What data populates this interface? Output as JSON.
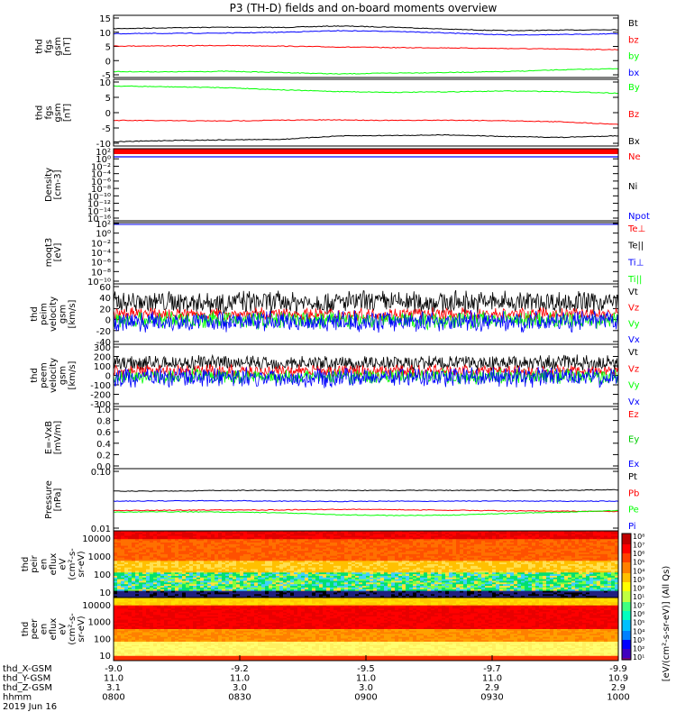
{
  "chart_data": {
    "title": "P3 (TH-D) fields and on-board moments overview",
    "panels": [
      {
        "id": "fgs_gsm_mag",
        "type": "line",
        "ylabel_lines": [
          "thd",
          "fgs",
          "gsm",
          "[nT]"
        ],
        "ylim": [
          -5,
          16
        ],
        "yticks": [
          "15",
          "10",
          "5",
          "0",
          "-5"
        ],
        "series": [
          {
            "name": "Bt",
            "color": "#000000",
            "values": [
              11.5,
              11.8,
              12.0,
              11.9,
              12.4,
              12.0,
              11.3,
              10.8,
              11.0,
              11.2
            ]
          },
          {
            "name": "bz",
            "color": "#ff0000",
            "values": [
              5.6,
              5.7,
              5.8,
              5.6,
              5.3,
              5.1,
              5.0,
              4.8,
              4.6,
              4.4
            ]
          },
          {
            "name": "by",
            "color": "#00ff00",
            "values": [
              -3.0,
              -3.1,
              -2.9,
              -3.3,
              -3.8,
              -3.5,
              -3.3,
              -3.0,
              -2.4,
              -2.0
            ]
          },
          {
            "name": "bx",
            "color": "#0000ff",
            "values": [
              9.8,
              9.9,
              10.0,
              10.3,
              10.8,
              10.6,
              10.0,
              9.4,
              9.5,
              9.8
            ]
          }
        ]
      },
      {
        "id": "fgs_gsm_comp",
        "type": "line",
        "ylabel_lines": [
          "thd",
          "fgs",
          "gsm",
          "[nT]"
        ],
        "ylim": [
          -12,
          12
        ],
        "yticks": [
          "10",
          "5",
          "0",
          "-5",
          "-10"
        ],
        "series": [
          {
            "name": "By",
            "color": "#00ff00",
            "values": [
              9.6,
              9.3,
              9.0,
              8.2,
              7.6,
              7.3,
              7.5,
              7.8,
              7.6,
              7.0
            ]
          },
          {
            "name": "Bz",
            "color": "#ff0000",
            "values": [
              -2.8,
              -2.9,
              -3.0,
              -2.7,
              -2.6,
              -2.8,
              -2.7,
              -2.9,
              -3.3,
              -4.2
            ]
          },
          {
            "name": "Bx",
            "color": "#000000",
            "values": [
              -10.5,
              -10.0,
              -9.8,
              -9.6,
              -8.4,
              -8.2,
              -8.0,
              -8.6,
              -8.9,
              -8.3
            ]
          }
        ]
      },
      {
        "id": "density",
        "type": "line",
        "ylabel_lines": [
          "Density",
          "[cm-3]"
        ],
        "yscale": "log",
        "yticks": [
          "10²",
          "10⁰",
          "10⁻²",
          "10⁻⁴",
          "10⁻⁶",
          "10⁻⁸",
          "10⁻¹⁰",
          "10⁻¹²",
          "10⁻¹⁴",
          "10⁻¹⁶"
        ],
        "series": [
          {
            "name": "Ne",
            "color": "#ff0000"
          },
          {
            "name": "Ni",
            "color": "#000000"
          },
          {
            "name": "Npot",
            "color": "#0000ff"
          }
        ]
      },
      {
        "id": "moqt3",
        "type": "line",
        "ylabel_lines": [
          "moqt3",
          "[eV]"
        ],
        "yscale": "log",
        "yticks": [
          "10²",
          "10⁰",
          "10⁻²",
          "10⁻⁴",
          "10⁻⁶",
          "10⁻⁸",
          "10⁻¹⁰"
        ],
        "series": [
          {
            "name": "Te⊥",
            "color": "#ff0000"
          },
          {
            "name": "Te||",
            "color": "#000000"
          },
          {
            "name": "Ti⊥",
            "color": "#0000ff"
          },
          {
            "name": "Ti||",
            "color": "#00ff00"
          }
        ]
      },
      {
        "id": "peim_velocity",
        "type": "line",
        "ylabel_lines": [
          "thd",
          "peim",
          "velocity",
          "gsm",
          "[km/s]"
        ],
        "ylim": [
          -40,
          60
        ],
        "yticks": [
          "60",
          "40",
          "20",
          "0",
          "-20",
          "-40"
        ],
        "series": [
          {
            "name": "Vt",
            "color": "#000000",
            "center": 30,
            "amp": 18
          },
          {
            "name": "Vz",
            "color": "#ff0000",
            "center": 10,
            "amp": 10
          },
          {
            "name": "Vy",
            "color": "#00ff00",
            "center": 0,
            "amp": 14
          },
          {
            "name": "Vx",
            "color": "#0000ff",
            "center": -2,
            "amp": 16
          }
        ]
      },
      {
        "id": "peem_velocity",
        "type": "line",
        "ylabel_lines": [
          "thd",
          "peem",
          "velocity",
          "gsm",
          "[km/s]"
        ],
        "ylim": [
          -300,
          300
        ],
        "yticks": [
          "300",
          "200",
          "100",
          "0",
          "-100",
          "-200",
          "-300"
        ],
        "series": [
          {
            "name": "Vt",
            "color": "#000000",
            "center": 120,
            "amp": 70
          },
          {
            "name": "Vz",
            "color": "#ff0000",
            "center": 40,
            "amp": 60
          },
          {
            "name": "Vy",
            "color": "#00ff00",
            "center": -10,
            "amp": 70
          },
          {
            "name": "Vx",
            "color": "#0000ff",
            "center": -20,
            "amp": 90
          }
        ]
      },
      {
        "id": "efield",
        "type": "line",
        "ylabel_lines": [
          "E=-VxB",
          "[mV/m]"
        ],
        "ylim": [
          0,
          1
        ],
        "yticks": [
          "1.0",
          "0.8",
          "0.6",
          "0.4",
          "0.2",
          "0.0"
        ],
        "series": [
          {
            "name": "Ez",
            "color": "#ff0000"
          },
          {
            "name": "Ey",
            "color": "#00cc00"
          },
          {
            "name": "Ex",
            "color": "#0000ff"
          }
        ]
      },
      {
        "id": "pressure",
        "type": "line",
        "ylabel_lines": [
          "Pressure",
          "[nPa]"
        ],
        "yscale": "log",
        "ylim": [
          0.01,
          1
        ],
        "yticks": [
          "0.10",
          "0.01"
        ],
        "series": [
          {
            "name": "Pt",
            "color": "#000000",
            "values": [
              0.19,
              0.19,
              0.2,
              0.2,
              0.2,
              0.2,
              0.2,
              0.2,
              0.2,
              0.21
            ]
          },
          {
            "name": "Pb",
            "color": "#ff0000",
            "values": [
              0.045,
              0.046,
              0.047,
              0.047,
              0.049,
              0.048,
              0.046,
              0.044,
              0.043,
              0.042
            ]
          },
          {
            "name": "Pe",
            "color": "#00ff00",
            "values": [
              0.04,
              0.041,
              0.04,
              0.038,
              0.033,
              0.031,
              0.032,
              0.036,
              0.04,
              0.045
            ]
          },
          {
            "name": "Pi",
            "color": "#0000ff",
            "values": [
              0.09,
              0.092,
              0.093,
              0.09,
              0.088,
              0.09,
              0.09,
              0.091,
              0.09,
              0.09
            ]
          }
        ]
      },
      {
        "id": "peir_spectrogram",
        "type": "heatmap",
        "ylabel_lines": [
          "thd",
          "peir",
          "en",
          "eflux",
          "eV",
          "(cm²-s-",
          "sr-eV)"
        ],
        "yscale": "log",
        "yticks": [
          "10000",
          "1000",
          "100",
          "10"
        ]
      },
      {
        "id": "peer_spectrogram",
        "type": "heatmap",
        "ylabel_lines": [
          "thd",
          "peer",
          "en",
          "eflux",
          "eV",
          "(cm²-s-",
          "sr-eV)"
        ],
        "yscale": "log",
        "yticks": [
          "10000",
          "1000",
          "100",
          "10"
        ]
      }
    ],
    "colorbar": {
      "ticks": [
        "10⁸",
        "10⁷",
        "10⁶",
        "10⁵",
        "10⁴",
        "10³",
        "10²",
        "10¹",
        "10⁷",
        "10⁶",
        "10⁵",
        "10⁴",
        "10³",
        "10²",
        "10¹"
      ],
      "label": "[eV/(cm²-s-sr-eV)] (All Qs)"
    },
    "x_axis": {
      "rows": [
        {
          "label": "thd_X-GSM",
          "values": [
            "-9.0",
            "-9.2",
            "-9.5",
            "-9.7",
            "-9.9"
          ]
        },
        {
          "label": "thd_Y-GSM",
          "values": [
            "11.0",
            "11.0",
            "11.0",
            "11.0",
            "10.9"
          ]
        },
        {
          "label": "thd_Z-GSM",
          "values": [
            "3.1",
            "3.0",
            "3.0",
            "2.9",
            "2.9"
          ]
        },
        {
          "label": "hhmm",
          "values": [
            "0800",
            "0830",
            "0900",
            "0930",
            "1000"
          ]
        }
      ],
      "date": "2019 Jun 16"
    }
  }
}
